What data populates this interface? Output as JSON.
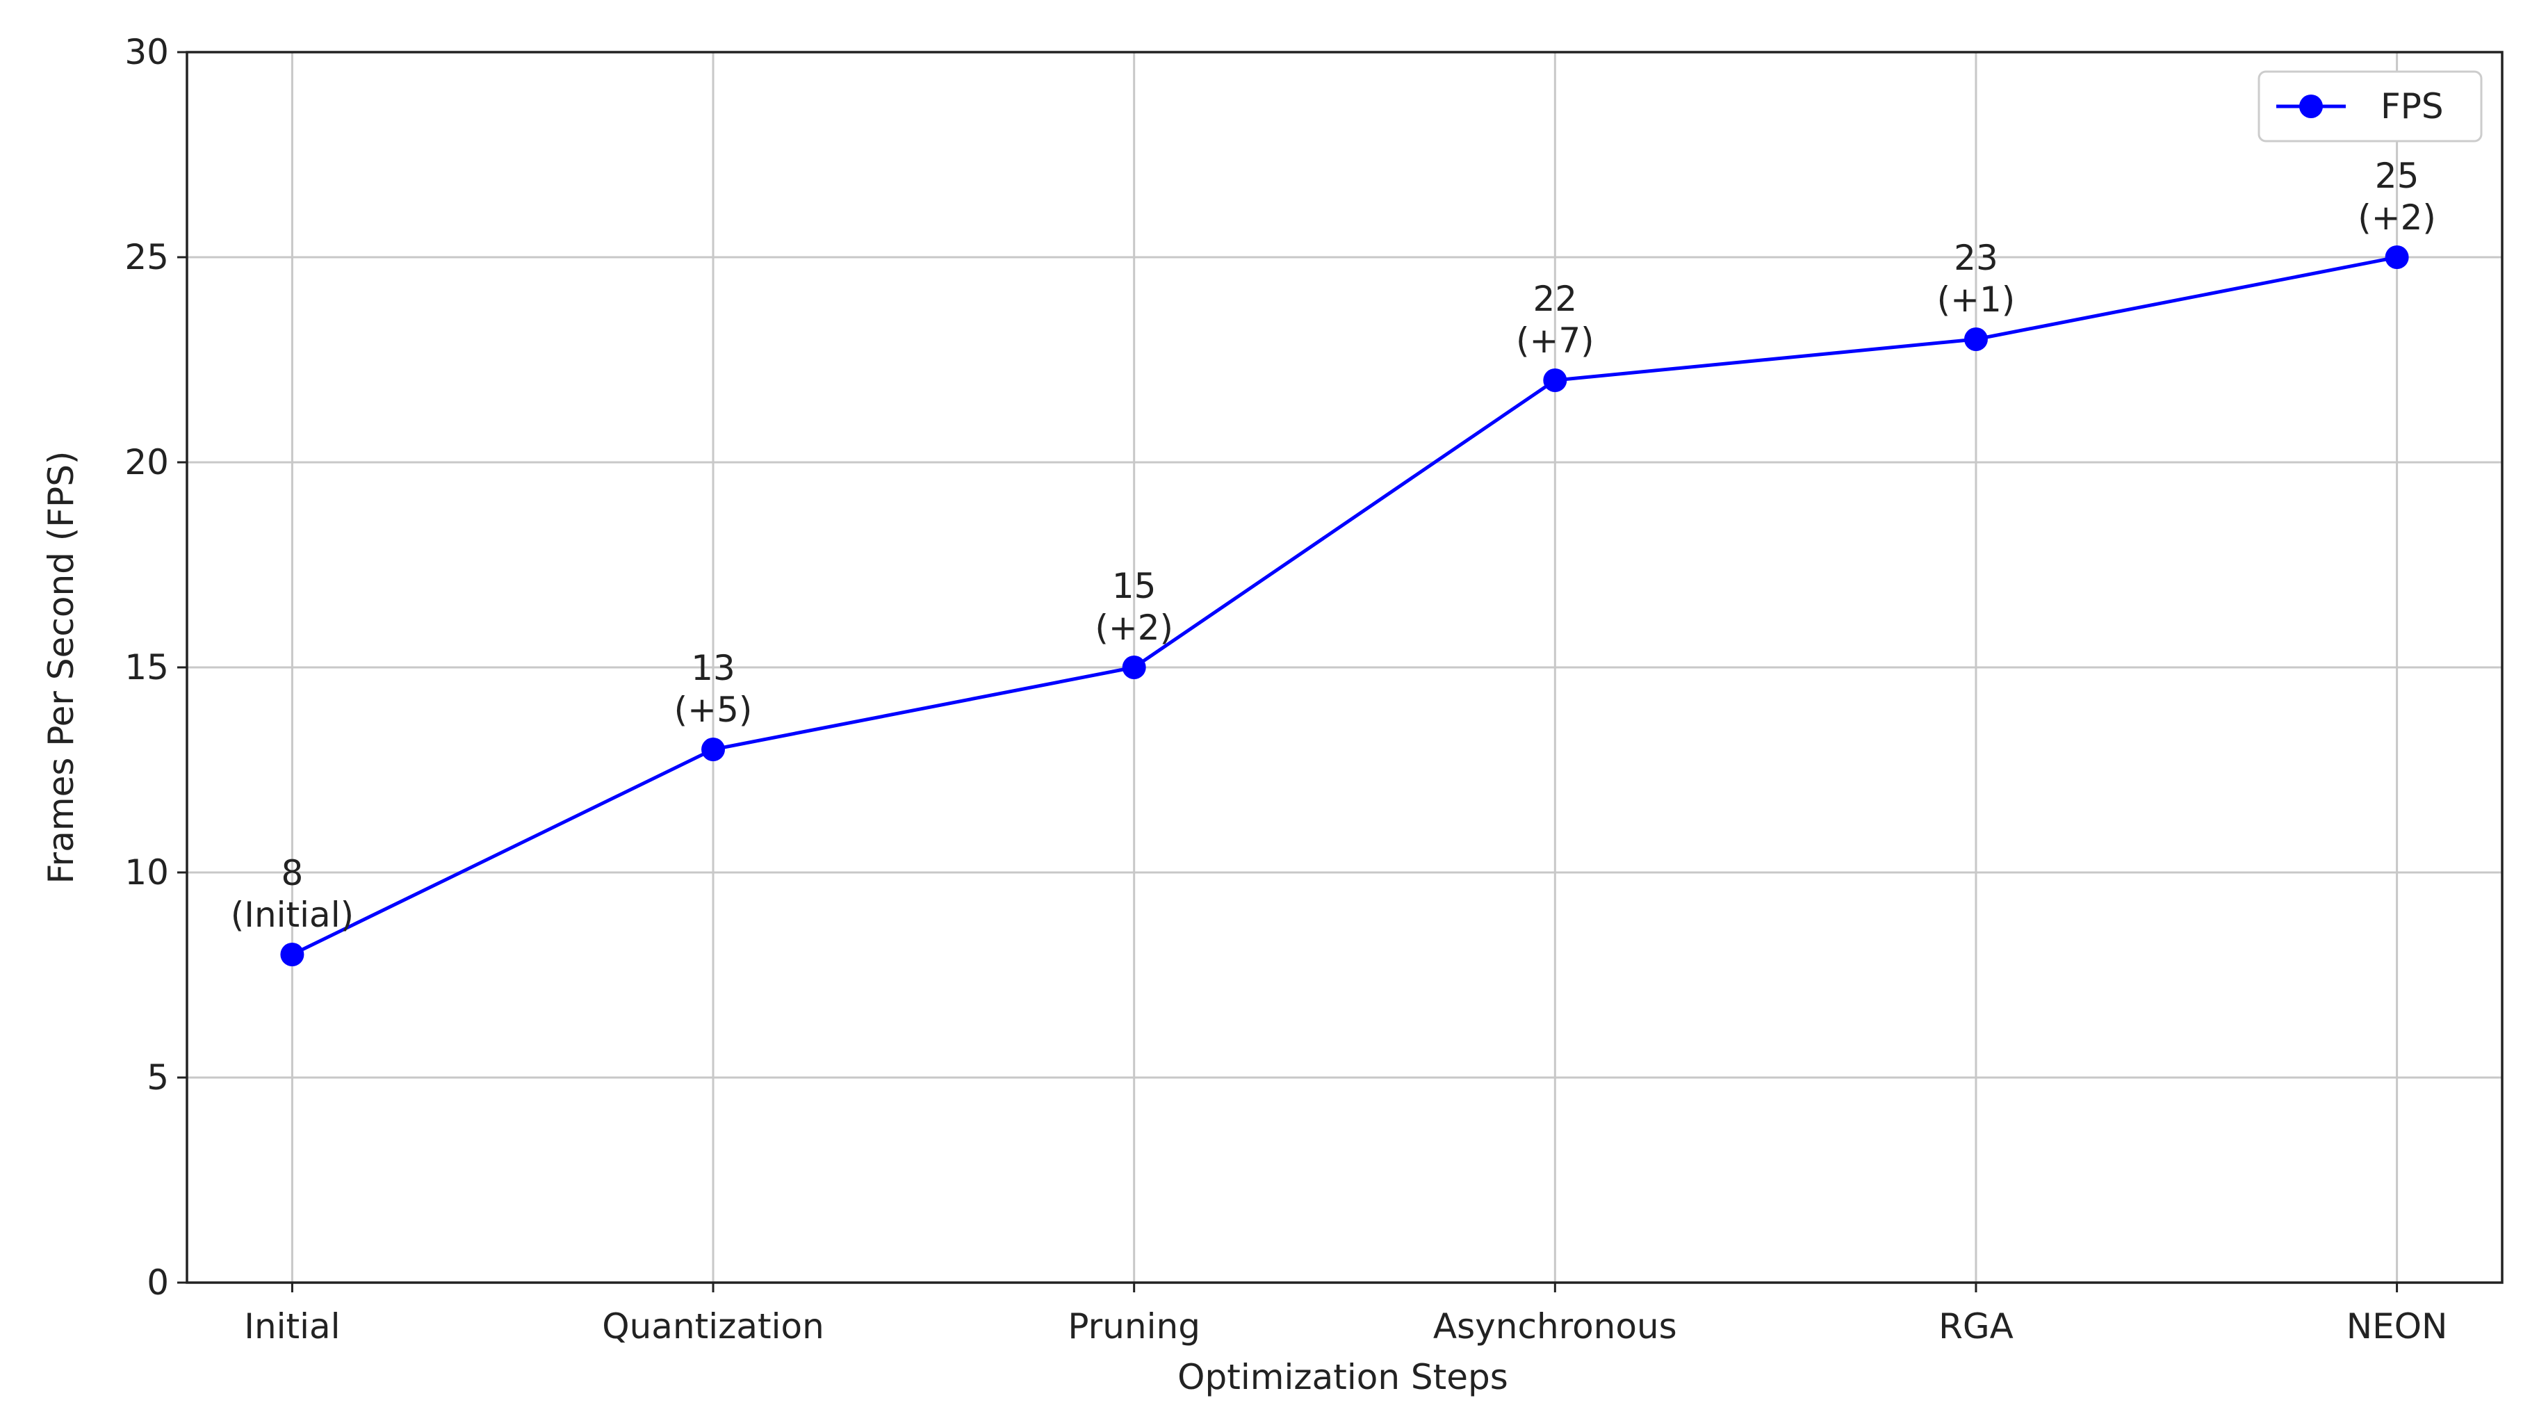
{
  "chart_data": {
    "type": "line",
    "x_label": "Optimization Steps",
    "y_label": "Frames Per Second (FPS)",
    "categories": [
      "Initial",
      "Quantization",
      "Pruning",
      "Asynchronous",
      "RGA",
      "NEON"
    ],
    "series": [
      {
        "name": "FPS",
        "color": "#0000ff",
        "values": [
          8,
          13,
          15,
          22,
          23,
          25
        ],
        "value_labels": [
          "8\n(Initial)",
          "13\n(+5)",
          "15\n(+2)",
          "22\n(+7)",
          "23\n(+1)",
          "25\n(+2)"
        ]
      }
    ],
    "ylim": [
      0,
      30
    ],
    "yticks": [
      0,
      5,
      10,
      15,
      20,
      25,
      30
    ],
    "grid": true,
    "legend": "upper right"
  }
}
